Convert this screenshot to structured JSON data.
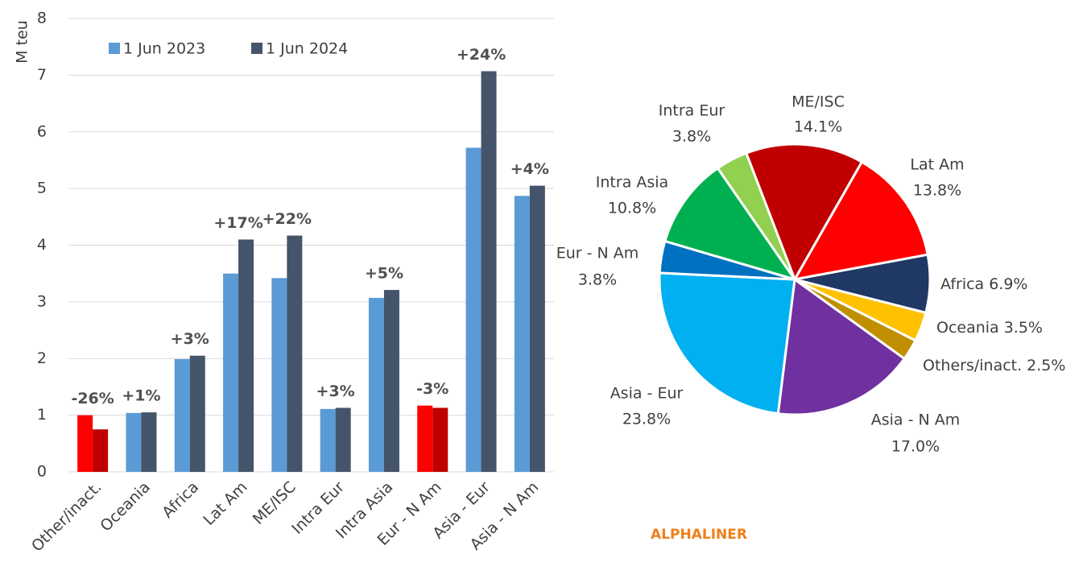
{
  "chart_data": [
    {
      "type": "bar",
      "y_label": "M teu",
      "categories": [
        "Other/inact.",
        "Oceania",
        "Africa",
        "Lat Am",
        "ME/ISC",
        "Intra Eur",
        "Intra Asia",
        "Eur - N Am",
        "Asia - Eur",
        "Asia - N Am"
      ],
      "series": [
        {
          "name": "1 Jun 2023",
          "color": "#5b9bd5",
          "colors": [
            "#ff0000",
            "#5b9bd5",
            "#5b9bd5",
            "#5b9bd5",
            "#5b9bd5",
            "#5b9bd5",
            "#5b9bd5",
            "#ff0000",
            "#5b9bd5",
            "#5b9bd5"
          ],
          "values": [
            1.0,
            1.04,
            1.99,
            3.5,
            3.42,
            1.11,
            3.07,
            1.17,
            5.72,
            4.87
          ]
        },
        {
          "name": "1 Jun 2024",
          "color": "#44546a",
          "colors": [
            "#c00000",
            "#44546a",
            "#44546a",
            "#44546a",
            "#44546a",
            "#44546a",
            "#44546a",
            "#c00000",
            "#44546a",
            "#44546a"
          ],
          "values": [
            0.75,
            1.05,
            2.05,
            4.1,
            4.17,
            1.13,
            3.21,
            1.13,
            7.07,
            5.05
          ]
        }
      ],
      "annotations": [
        "-26%",
        "+1%",
        "+3%",
        "+17%",
        "+22%",
        "+3%",
        "+5%",
        "-3%",
        "+24%",
        "+4%"
      ],
      "ylim": [
        0,
        8
      ],
      "yticks": [
        0,
        1,
        2,
        3,
        4,
        5,
        6,
        7,
        8
      ],
      "grid": true,
      "legend": "top"
    },
    {
      "type": "pie",
      "categories": [
        "ME/ISC",
        "Lat Am",
        "Africa",
        "Oceania",
        "Others/inact.",
        "Asia - N Am",
        "Asia - Eur",
        "Eur - N Am",
        "Intra Asia",
        "Intra Eur"
      ],
      "values": [
        14.1,
        13.8,
        6.9,
        3.5,
        2.5,
        17.0,
        23.8,
        3.8,
        10.8,
        3.8
      ],
      "value_labels": [
        "14.1%",
        "13.8%",
        "6.9%",
        "3.5%",
        "2.5%",
        "17.0%",
        "23.8%",
        "3.8%",
        "10.8%",
        "3.8%"
      ],
      "colors": [
        "#c00000",
        "#ff0000",
        "#1f3864",
        "#ffc000",
        "#bf8f00",
        "#7030a0",
        "#00b0f0",
        "#0070c0",
        "#00b050",
        "#92d050"
      ]
    }
  ],
  "watermark": "ALPHALINER"
}
